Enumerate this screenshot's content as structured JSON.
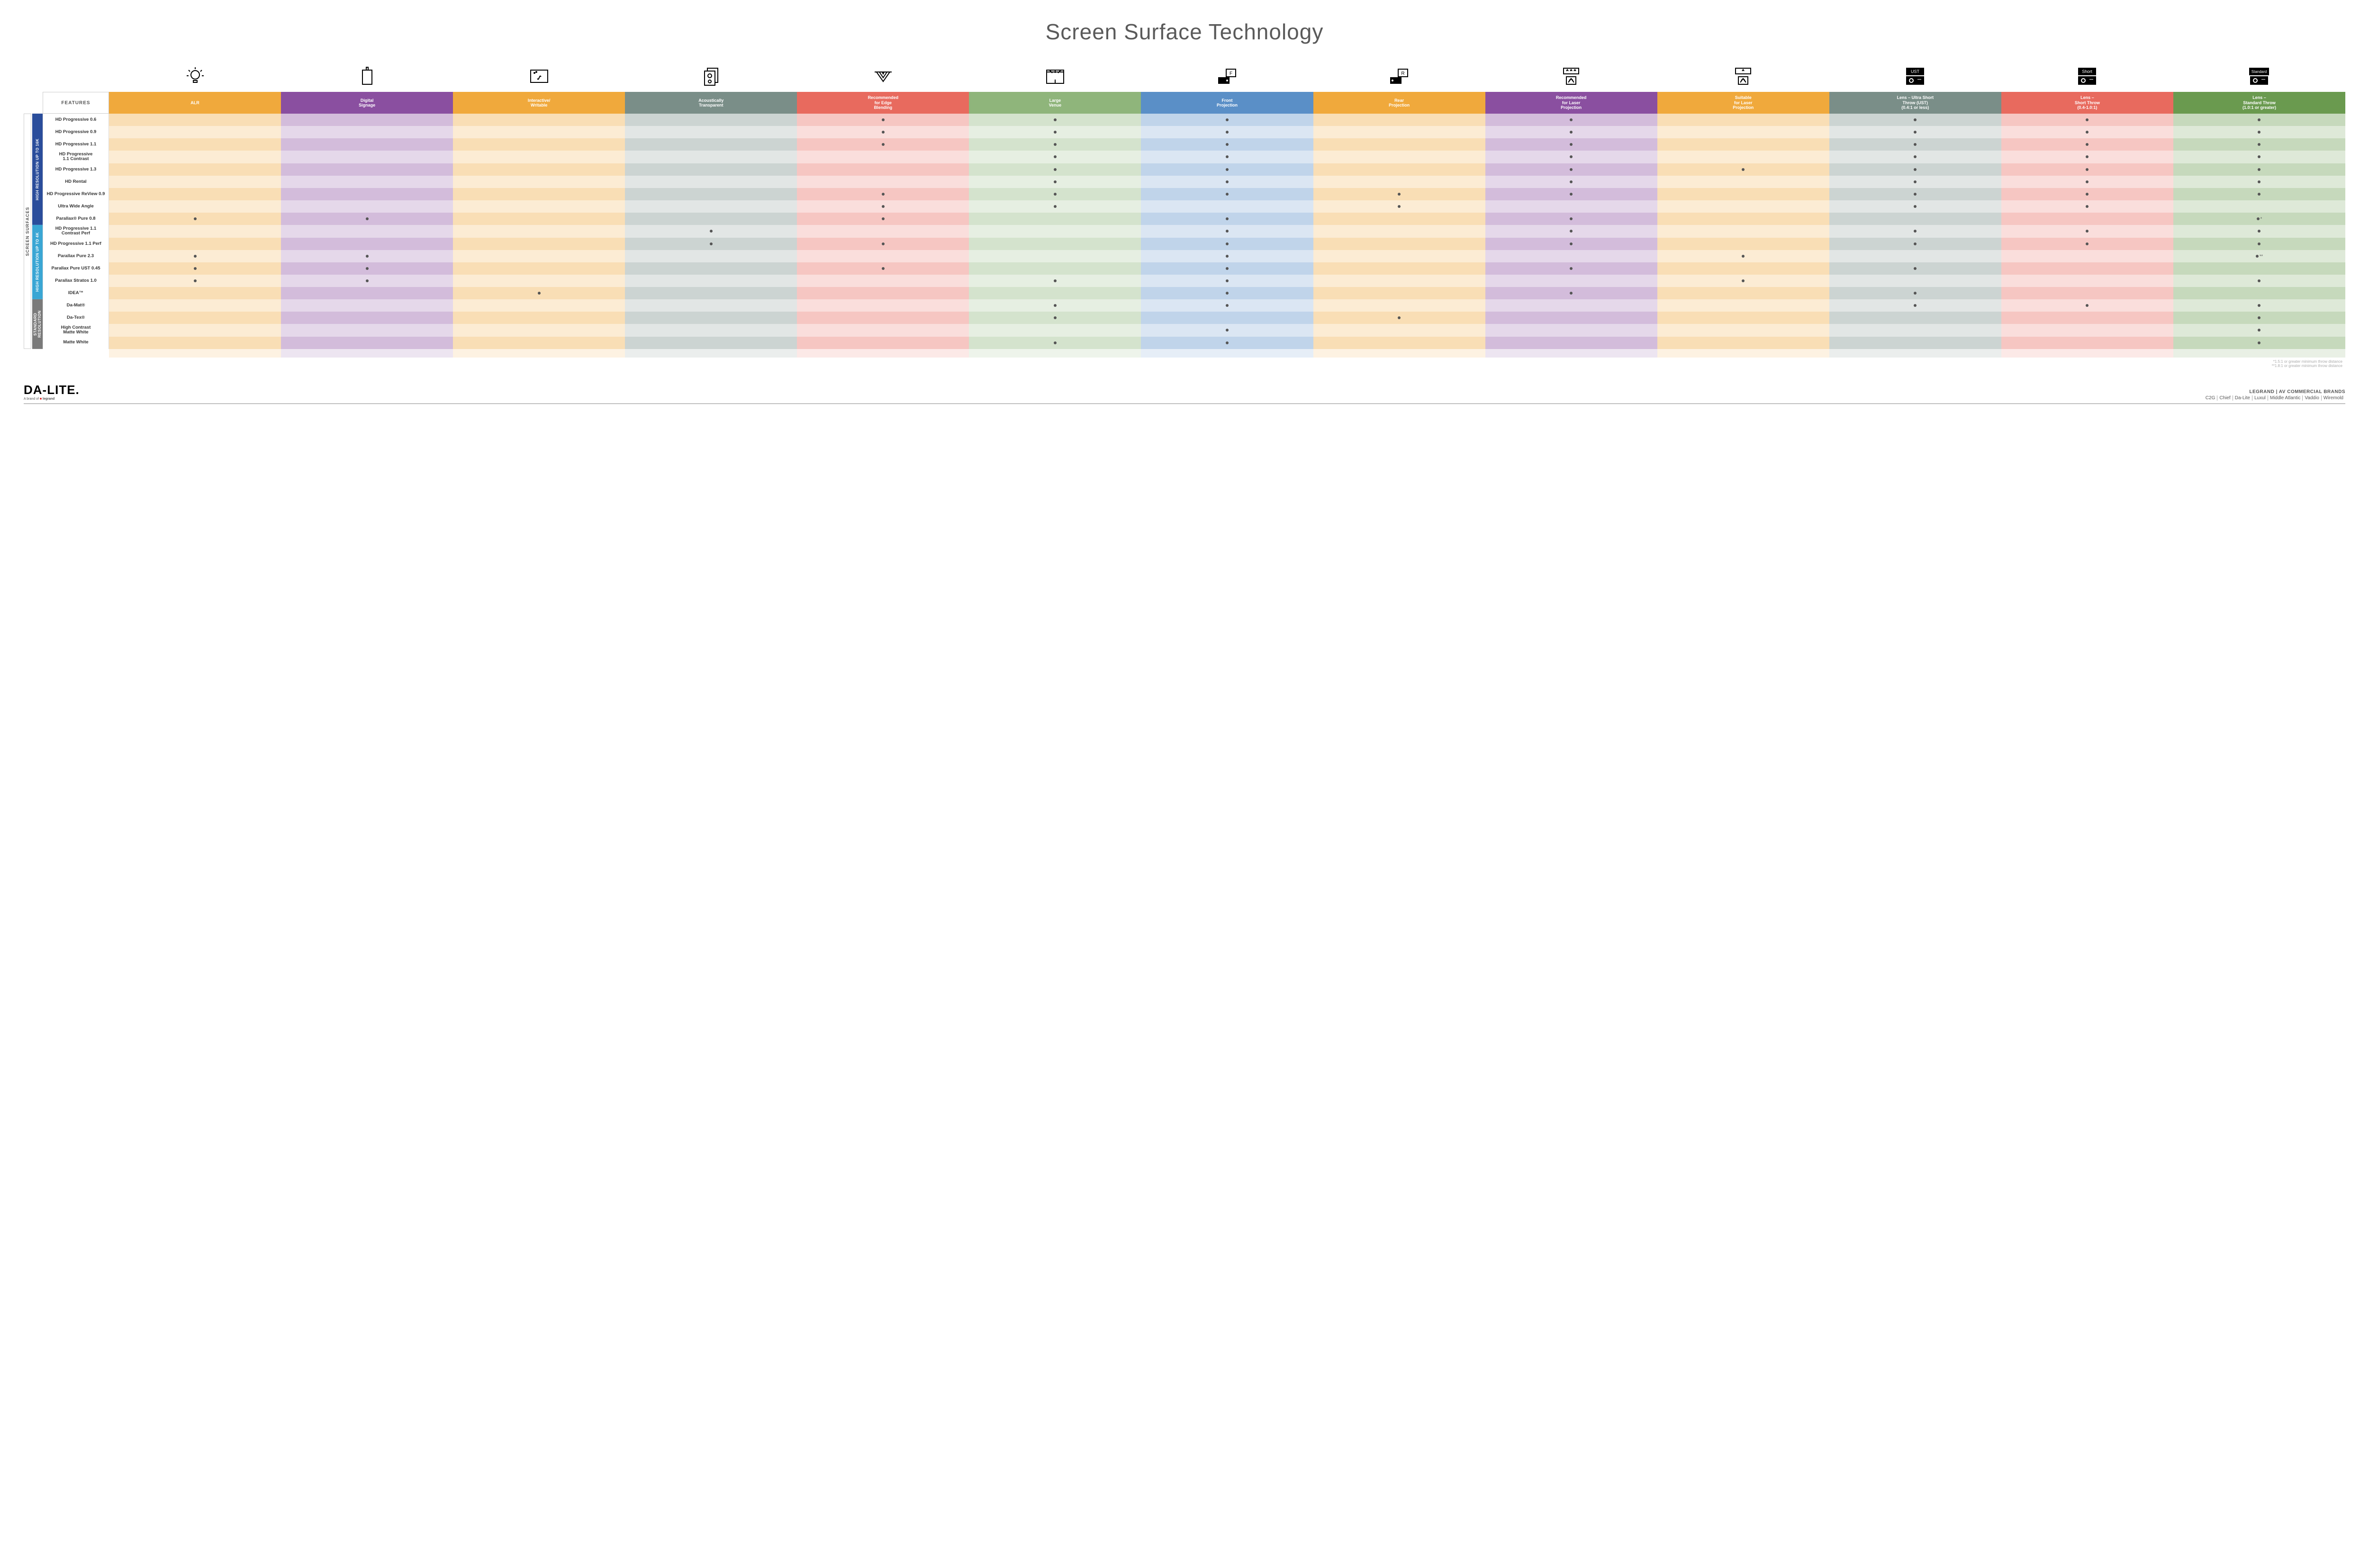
{
  "title": "Screen Surface Technology",
  "title_fontsize": 46,
  "features_label": "FEATURES",
  "side_main_label": "SCREEN SURFACES",
  "columns": [
    {
      "key": "alr",
      "label": "ALR",
      "color": "#f0a93c",
      "alt": "#f6c97e"
    },
    {
      "key": "signage",
      "label": "Digital\nSignage",
      "color": "#8a4fa0",
      "alt": "#b38ac0"
    },
    {
      "key": "interactive",
      "label": "Interactive/\nWritable",
      "color": "#f0a93c",
      "alt": "#f6c97e"
    },
    {
      "key": "acoustic",
      "label": "Acoustically\nTransparent",
      "color": "#7a8e88",
      "alt": "#a8b5af"
    },
    {
      "key": "edge",
      "label": "Recommended\nfor Edge\nBlending",
      "color": "#e86a5e",
      "alt": "#f0a39a"
    },
    {
      "key": "venue",
      "label": "Large\nVenue",
      "color": "#8fb57b",
      "alt": "#b9d0a9"
    },
    {
      "key": "front",
      "label": "Front\nProjection",
      "color": "#5a8fc7",
      "alt": "#a3c0de"
    },
    {
      "key": "rear",
      "label": "Rear\nProjection",
      "color": "#f0a93c",
      "alt": "#f6c97e"
    },
    {
      "key": "rec_laser",
      "label": "Recommended\nfor Laser\nProjection",
      "color": "#8a4fa0",
      "alt": "#b38ac0"
    },
    {
      "key": "suit_laser",
      "label": "Suitable\nfor Laser\nProjection",
      "color": "#f0a93c",
      "alt": "#f6c97e"
    },
    {
      "key": "ust",
      "label": "Lens – Ultra Short\nThrow (UST)\n(0.4:1 or less)",
      "color": "#7a8e88",
      "alt": "#a8b5af"
    },
    {
      "key": "short",
      "label": "Lens –\nShort Throw\n(0.4-1.0:1)",
      "color": "#e86a5e",
      "alt": "#f0a39a"
    },
    {
      "key": "std",
      "label": "Lens –\nStandard Throw\n(1.0:1 or greater)",
      "color": "#6a9a4f",
      "alt": "#9ebd88"
    }
  ],
  "groups": [
    {
      "label": "HIGH RESOLUTION UP TO 16K",
      "color": "#2a4d9b",
      "rows": 9
    },
    {
      "label": "HIGH RESOLUTION UP TO 4K",
      "color": "#3aa6d4",
      "rows": 6
    },
    {
      "label": "STANDARD\nRESOLUTION",
      "color": "#7a7a7a",
      "rows": 4
    }
  ],
  "rows": [
    {
      "label": "HD Progressive 0.6",
      "dots": {
        "edge": "•",
        "venue": "•",
        "front": "•",
        "rec_laser": "•",
        "ust": "•",
        "short": "•",
        "std": "•"
      }
    },
    {
      "label": "HD Progressive 0.9",
      "dots": {
        "edge": "•",
        "venue": "•",
        "front": "•",
        "rec_laser": "•",
        "ust": "•",
        "short": "•",
        "std": "•"
      }
    },
    {
      "label": "HD Progressive 1.1",
      "dots": {
        "edge": "•",
        "venue": "•",
        "front": "•",
        "rec_laser": "•",
        "ust": "•",
        "short": "•",
        "std": "•"
      }
    },
    {
      "label": "HD Progressive\n1.1 Contrast",
      "dots": {
        "venue": "•",
        "front": "•",
        "rec_laser": "•",
        "ust": "•",
        "short": "•",
        "std": "•"
      }
    },
    {
      "label": "HD Progressive 1.3",
      "dots": {
        "venue": "•",
        "front": "•",
        "rec_laser": "•",
        "suit_laser": "•",
        "ust": "•",
        "short": "•",
        "std": "•"
      }
    },
    {
      "label": "HD Rental",
      "dots": {
        "venue": "•",
        "front": "•",
        "rec_laser": "•",
        "ust": "•",
        "short": "•",
        "std": "•"
      }
    },
    {
      "label": "HD Progressive ReView 0.9",
      "dots": {
        "edge": "•",
        "venue": "•",
        "front": "•",
        "rear": "•",
        "rec_laser": "•",
        "ust": "•",
        "short": "•",
        "std": "•"
      }
    },
    {
      "label": "Ultra Wide Angle",
      "dots": {
        "edge": "•",
        "venue": "•",
        "rear": "•",
        "ust": "•",
        "short": "•"
      }
    },
    {
      "label": "Parallax® Pure 0.8",
      "dots": {
        "alr": "•",
        "signage": "•",
        "edge": "•",
        "front": "•",
        "rec_laser": "•",
        "std": "•*"
      }
    },
    {
      "label": "HD Progressive 1.1\nContrast Perf",
      "dots": {
        "acoustic": "•",
        "front": "•",
        "rec_laser": "•",
        "ust": "•",
        "short": "•",
        "std": "•"
      }
    },
    {
      "label": "HD Progressive 1.1 Perf",
      "dots": {
        "acoustic": "•",
        "edge": "•",
        "front": "•",
        "rec_laser": "•",
        "ust": "•",
        "short": "•",
        "std": "•"
      }
    },
    {
      "label": "Parallax Pure 2.3",
      "dots": {
        "alr": "•",
        "signage": "•",
        "front": "•",
        "suit_laser": "•",
        "std": "•**"
      }
    },
    {
      "label": "Parallax Pure UST 0.45",
      "dots": {
        "alr": "•",
        "signage": "•",
        "edge": "•",
        "front": "•",
        "rec_laser": "•",
        "ust": "•"
      }
    },
    {
      "label": "Parallax Stratos 1.0",
      "dots": {
        "alr": "•",
        "signage": "•",
        "venue": "•",
        "front": "•",
        "suit_laser": "•",
        "std": "•"
      }
    },
    {
      "label": "IDEA™",
      "dots": {
        "interactive": "•",
        "front": "•",
        "rec_laser": "•",
        "ust": "•"
      }
    },
    {
      "label": "Da-Mat®",
      "dots": {
        "venue": "•",
        "front": "•",
        "ust": "•",
        "short": "•",
        "std": "•"
      }
    },
    {
      "label": "Da-Tex®",
      "dots": {
        "venue": "•",
        "rear": "•",
        "std": "•"
      }
    },
    {
      "label": "High Contrast\nMatte White",
      "dots": {
        "front": "•",
        "std": "•"
      }
    },
    {
      "label": "Matte White",
      "dots": {
        "venue": "•",
        "front": "•",
        "std": "•"
      }
    }
  ],
  "footnotes": [
    "*1.5:1 or greater minimum throw distance",
    "**1.8:1 or greater minimum throw distance"
  ],
  "brand": {
    "logo": "DA-LITE.",
    "sub_prefix": "A brand of ",
    "sub_brand": "legrand",
    "right_top": "LEGRAND | AV COMMERCIAL BRANDS",
    "right_list": [
      "C2G",
      "Chief",
      "Da-Lite",
      "Luxul",
      "Middle Atlantic",
      "Vaddio",
      "Wiremold"
    ]
  },
  "icon_labels": [
    "UST",
    "Short",
    "Standard"
  ]
}
